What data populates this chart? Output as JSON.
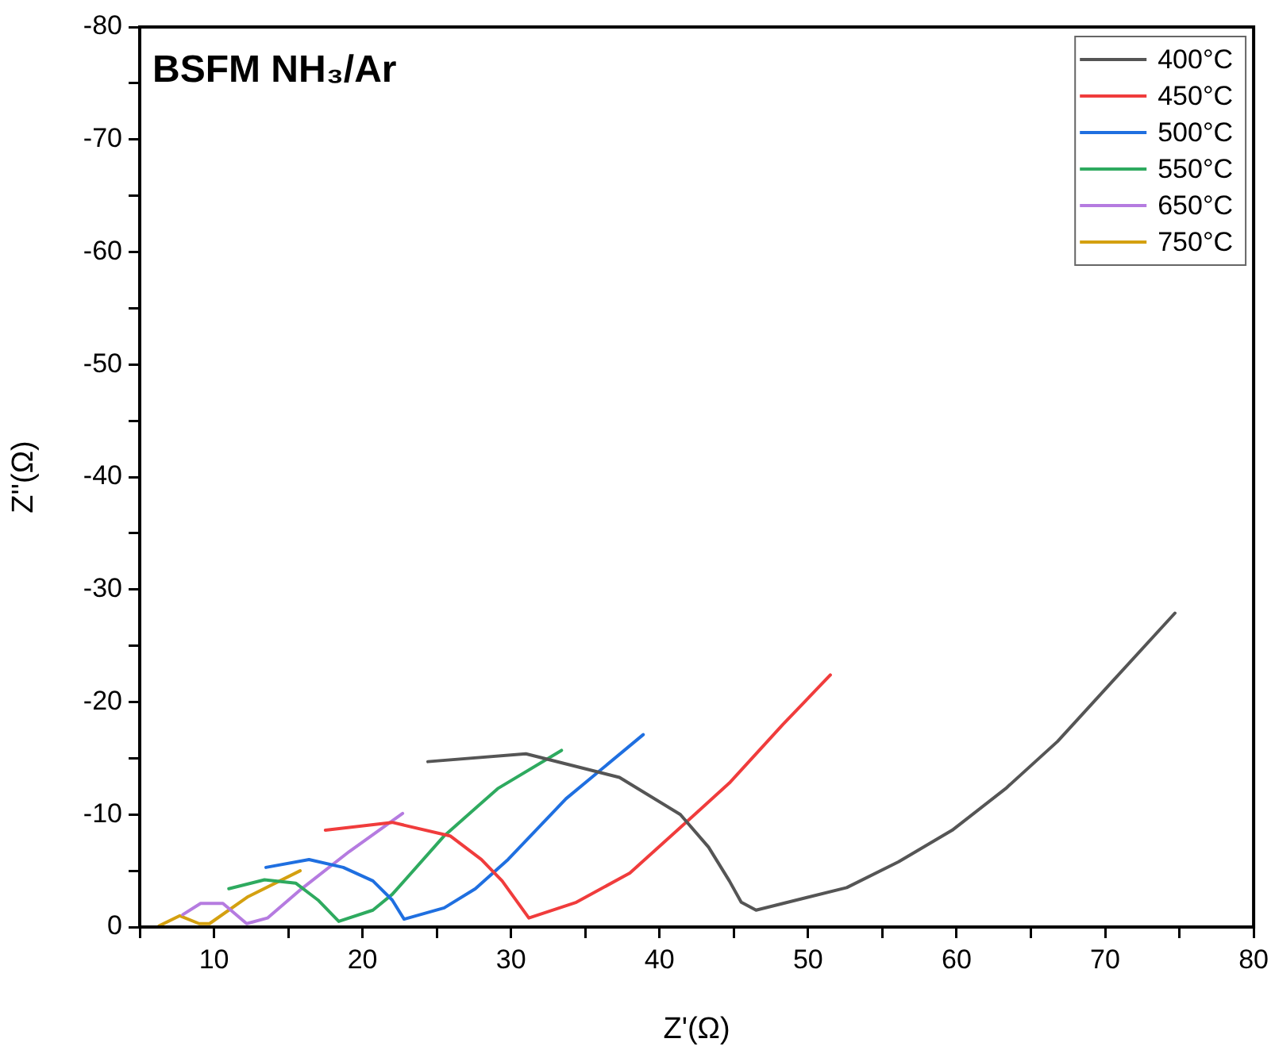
{
  "chart_data": {
    "type": "line",
    "title": "BSFM NH₃/Ar",
    "xlabel": "Z'(Ω)",
    "ylabel": "Z''(Ω)",
    "xlim": [
      5,
      80
    ],
    "xticks": [
      {
        "value": 5,
        "label": null
      },
      10,
      {
        "value": 15,
        "label": null
      },
      20,
      {
        "value": 25,
        "label": null
      },
      30,
      {
        "value": 35,
        "label": null
      },
      40,
      {
        "value": 45,
        "label": null
      },
      50,
      {
        "value": 55,
        "label": null
      },
      60,
      {
        "value": 65,
        "label": null
      },
      70,
      {
        "value": 75,
        "label": null
      },
      80
    ],
    "ylim": [
      0,
      -80
    ],
    "yticks": [
      0,
      {
        "value": -5,
        "label": null
      },
      -10,
      {
        "value": -15,
        "label": null
      },
      -20,
      {
        "value": -25,
        "label": null
      },
      -30,
      {
        "value": -35,
        "label": null
      },
      -40,
      {
        "value": -45,
        "label": null
      },
      -50,
      {
        "value": -55,
        "label": null
      },
      -60,
      {
        "value": -65,
        "label": null
      },
      -70,
      {
        "value": -75,
        "label": null
      },
      -80
    ],
    "grid": false,
    "legend": "top right",
    "marker": "none",
    "line_style": "solid",
    "series": [
      {
        "name": "400°C",
        "color": "#555555",
        "x": [
          24.4,
          31.0,
          37.3,
          41.4,
          43.3,
          44.7,
          45.5,
          46.5,
          52.6,
          56.1,
          59.7,
          63.3,
          66.8,
          70.4,
          74.7
        ],
        "values": [
          -14.7,
          -15.4,
          -13.3,
          -10.0,
          -7.1,
          -4.1,
          -2.2,
          -1.5,
          -3.5,
          -5.8,
          -8.6,
          -12.3,
          -16.5,
          -21.7,
          -27.9
        ]
      },
      {
        "name": "450°C",
        "color": "#f03c3c",
        "x": [
          17.5,
          22.0,
          25.9,
          28.0,
          29.4,
          31.2,
          34.4,
          38.0,
          41.2,
          44.7,
          48.3,
          51.5
        ],
        "values": [
          -8.6,
          -9.3,
          -8.1,
          -6.0,
          -4.1,
          -0.8,
          -2.2,
          -4.8,
          -8.6,
          -12.8,
          -18.0,
          -22.4
        ]
      },
      {
        "name": "500°C",
        "color": "#1f6fe0",
        "x": [
          13.5,
          16.4,
          18.7,
          20.7,
          22.0,
          22.8,
          25.5,
          27.6,
          29.8,
          33.7,
          38.9
        ],
        "values": [
          -5.3,
          -6.0,
          -5.3,
          -4.1,
          -2.4,
          -0.7,
          -1.7,
          -3.4,
          -6.0,
          -11.4,
          -17.1
        ]
      },
      {
        "name": "550°C",
        "color": "#2eaa5f",
        "x": [
          11.0,
          13.4,
          15.5,
          17.0,
          18.4,
          20.7,
          22.0,
          25.5,
          29.1,
          33.4
        ],
        "values": [
          -3.4,
          -4.2,
          -3.9,
          -2.4,
          -0.5,
          -1.5,
          -2.9,
          -8.1,
          -12.3,
          -15.7
        ]
      },
      {
        "name": "650°C",
        "color": "#b57be0",
        "x": [
          7.9,
          9.1,
          10.6,
          12.2,
          13.6,
          15.9,
          19.1,
          22.7
        ],
        "values": [
          -1.1,
          -2.1,
          -2.1,
          -0.3,
          -0.8,
          -3.4,
          -6.7,
          -10.1
        ]
      },
      {
        "name": "750°C",
        "color": "#d4a010",
        "x": [
          6.3,
          7.7,
          9.0,
          9.7,
          12.3,
          15.8
        ],
        "values": [
          -0.1,
          -1.0,
          -0.3,
          -0.3,
          -2.7,
          -5.0
        ]
      }
    ]
  }
}
